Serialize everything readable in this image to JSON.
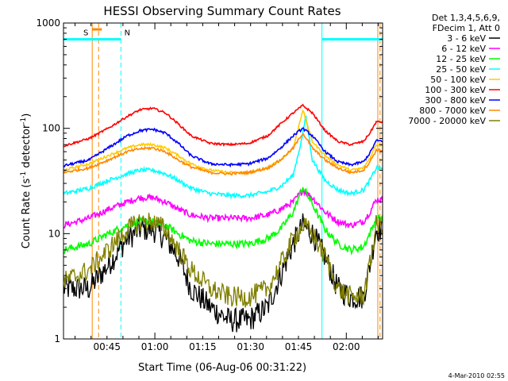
{
  "chart_data": {
    "type": "line",
    "title": "HESSI Observing Summary Count Rates",
    "xlabel": "Start Time (06-Aug-06 00:31:22)",
    "ylabel_main": "Count Rate (s",
    "ylabel_sup1": "-1",
    "ylabel_mid": " detector",
    "ylabel_sup2": "-1",
    "ylabel_end": ")",
    "x_minutes_range": [
      0,
      100
    ],
    "y_log_range": [
      1,
      1000
    ],
    "x_ticks": [
      {
        "minute": 13.63,
        "label": "00:45"
      },
      {
        "minute": 28.63,
        "label": "01:00"
      },
      {
        "minute": 43.63,
        "label": "01:15"
      },
      {
        "minute": 58.63,
        "label": "01:30"
      },
      {
        "minute": 73.63,
        "label": "01:45"
      },
      {
        "minute": 88.63,
        "label": "02:00"
      }
    ],
    "y_ticks": [
      {
        "value": 1,
        "label": "1"
      },
      {
        "value": 10,
        "label": "10"
      },
      {
        "value": 100,
        "label": "100"
      },
      {
        "value": 1000,
        "label": "1000"
      }
    ],
    "legend_header": [
      "Det 1,3,4,5,6,9,",
      "FDecim 1, Att 0"
    ],
    "series": [
      {
        "name": "3 - 6 keV",
        "color": "#000000",
        "minutes": [
          0,
          8,
          14,
          20,
          24,
          28,
          32,
          36,
          40,
          46,
          52,
          58,
          64,
          68,
          72,
          75,
          78,
          82,
          86,
          90,
          94,
          96,
          98,
          100
        ],
        "values": [
          3,
          3,
          5,
          9,
          11,
          11,
          9,
          6,
          3,
          2,
          1.5,
          1.5,
          2,
          4,
          8,
          12,
          10,
          6,
          3,
          2.5,
          2.5,
          5,
          11,
          11
        ]
      },
      {
        "name": "6 - 12 keV",
        "color": "#ff00ff",
        "minutes": [
          0,
          8,
          14,
          20,
          24,
          28,
          32,
          36,
          40,
          46,
          52,
          58,
          64,
          68,
          72,
          75,
          78,
          82,
          86,
          90,
          94,
          96,
          98,
          100
        ],
        "values": [
          12,
          14,
          17,
          20,
          22,
          22,
          20,
          17,
          15,
          14,
          14,
          14,
          15,
          17,
          20,
          26,
          22,
          16,
          13,
          12,
          13,
          16,
          21,
          21
        ]
      },
      {
        "name": "12 - 25 keV",
        "color": "#00ff00",
        "minutes": [
          0,
          8,
          14,
          20,
          24,
          28,
          32,
          36,
          40,
          46,
          52,
          58,
          64,
          68,
          72,
          75,
          78,
          82,
          86,
          90,
          94,
          96,
          98,
          100
        ],
        "values": [
          7,
          8,
          10,
          12,
          13,
          13,
          12,
          10,
          8.5,
          8,
          8,
          8,
          9,
          11,
          16,
          28,
          19,
          11,
          8,
          7,
          7.5,
          10,
          14,
          14
        ]
      },
      {
        "name": "25 - 50 keV",
        "color": "#00ffff",
        "minutes": [
          0,
          8,
          14,
          20,
          24,
          28,
          32,
          36,
          40,
          46,
          52,
          58,
          64,
          68,
          72,
          74.5,
          76,
          78,
          82,
          86,
          90,
          94,
          96,
          98,
          100
        ],
        "values": [
          24,
          27,
          32,
          37,
          40,
          40,
          37,
          32,
          27,
          24,
          23,
          23,
          25,
          28,
          36,
          75,
          130,
          50,
          32,
          26,
          24,
          26,
          32,
          42,
          42
        ]
      },
      {
        "name": "50 - 100 keV",
        "color": "#ffcc00",
        "minutes": [
          0,
          8,
          14,
          20,
          24,
          28,
          32,
          36,
          40,
          46,
          52,
          58,
          64,
          68,
          72,
          75,
          78,
          82,
          86,
          90,
          94,
          96,
          98,
          100
        ],
        "values": [
          40,
          46,
          55,
          65,
          70,
          70,
          65,
          55,
          46,
          40,
          38,
          38,
          42,
          50,
          65,
          150,
          75,
          55,
          45,
          40,
          42,
          52,
          70,
          70
        ]
      },
      {
        "name": "100 - 300 keV",
        "color": "#ff0000",
        "minutes": [
          0,
          8,
          14,
          20,
          24,
          28,
          32,
          36,
          40,
          46,
          52,
          58,
          64,
          68,
          72,
          75,
          78,
          82,
          86,
          90,
          94,
          96,
          98,
          100
        ],
        "values": [
          68,
          80,
          100,
          130,
          150,
          155,
          140,
          110,
          85,
          72,
          70,
          72,
          85,
          110,
          140,
          165,
          140,
          95,
          75,
          70,
          75,
          90,
          115,
          115
        ]
      },
      {
        "name": "300 - 800 keV",
        "color": "#0000ff",
        "minutes": [
          0,
          8,
          14,
          20,
          24,
          28,
          32,
          36,
          40,
          46,
          52,
          58,
          64,
          68,
          72,
          75,
          78,
          82,
          86,
          90,
          94,
          96,
          98,
          100
        ],
        "values": [
          44,
          50,
          65,
          85,
          95,
          98,
          90,
          72,
          55,
          46,
          45,
          46,
          52,
          65,
          85,
          100,
          85,
          60,
          48,
          45,
          48,
          58,
          76,
          76
        ]
      },
      {
        "name": "800 - 7000 keV",
        "color": "#ff8800",
        "minutes": [
          0,
          8,
          14,
          20,
          24,
          28,
          32,
          36,
          40,
          46,
          52,
          58,
          64,
          68,
          72,
          75,
          78,
          82,
          86,
          90,
          94,
          96,
          98,
          100
        ],
        "values": [
          38,
          42,
          50,
          60,
          64,
          65,
          60,
          50,
          43,
          38,
          37,
          38,
          42,
          50,
          65,
          90,
          65,
          50,
          42,
          38,
          40,
          48,
          62,
          62
        ]
      },
      {
        "name": "7000 - 20000 keV",
        "color": "#808000",
        "minutes": [
          0,
          8,
          14,
          20,
          24,
          28,
          32,
          36,
          40,
          46,
          52,
          58,
          64,
          68,
          72,
          75,
          78,
          82,
          86,
          90,
          94,
          96,
          98,
          100
        ],
        "values": [
          3.5,
          4.5,
          7,
          11,
          13,
          13,
          11,
          7,
          4.5,
          3,
          2.5,
          2.5,
          3,
          5,
          9,
          12,
          10,
          6,
          3,
          2.5,
          2.6,
          5,
          12,
          12
        ]
      }
    ],
    "markers": [
      {
        "minute": 9,
        "color": "#ff8800",
        "style": "solid"
      },
      {
        "minute": 11,
        "color": "#ff8800",
        "style": "dashed"
      },
      {
        "minute": 18,
        "color": "#00ffff",
        "style": "dashed"
      },
      {
        "minute": 81,
        "color": "#00ffff",
        "style": "solid"
      },
      {
        "minute": 98.5,
        "color": "#ff8800",
        "style": "solid"
      },
      {
        "minute": 99.2,
        "color": "#ff8800",
        "style": "dashed"
      }
    ],
    "bars": [
      {
        "from_minute": 0,
        "to_minute": 18,
        "value": 700,
        "color": "#00ffff"
      },
      {
        "from_minute": 81,
        "to_minute": 100,
        "value": 700,
        "color": "#00ffff"
      },
      {
        "from_minute": 9,
        "to_minute": 12,
        "value": 870,
        "color": "#ff8800"
      }
    ],
    "flags": [
      {
        "text": "S",
        "minute": 7,
        "color": "#ff8800"
      },
      {
        "text": "N",
        "minute": 20,
        "color": "#00ffff"
      }
    ],
    "grid": false,
    "legend_placement": "top-right outside plot"
  },
  "footer_date": "4-Mar-2010 02:55"
}
